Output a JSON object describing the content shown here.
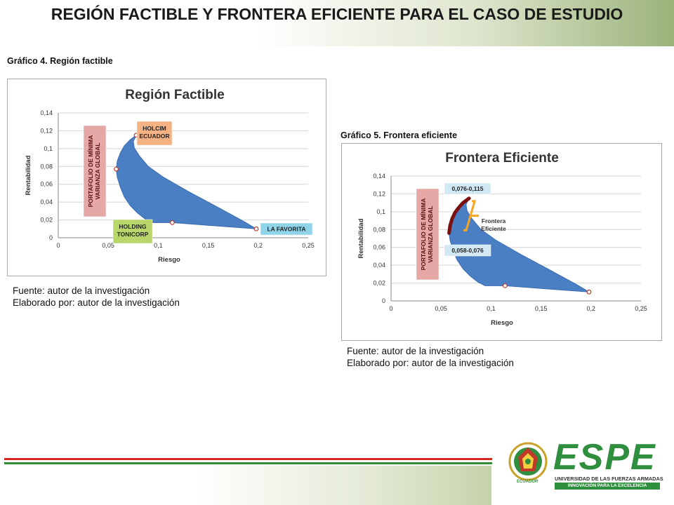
{
  "slide": {
    "title": "REGIÓN FACTIBLE Y FRONTERA EFICIENTE PARA EL CASO DE ESTUDIO",
    "caption_left": "Gráfico 4. Región factible",
    "caption_right": "Gráfico 5. Frontera eficiente",
    "source_left": "Fuente: autor de la investigación",
    "made_left": "Elaborado por: autor de la investigación",
    "source_right": "Fuente: autor de la investigación",
    "made_right": "Elaborado por: autor de la investigación",
    "colors": {
      "title_bar_end": "#9bb37a",
      "region_fill": "#4a7fc3",
      "frontier": "#7a1010",
      "bracket": "#f5a623",
      "line_red": "#d42a1e",
      "line_green": "#2f8a3a"
    }
  },
  "logo": {
    "name": "ESPE",
    "subtitle": "UNIVERSIDAD DE LAS FUERZAS ARMADAS",
    "tagline": "INNOVACIÓN PARA LA EXCELENCIA",
    "seal_text": "ECUADOR",
    "colors": {
      "green": "#2f8f3e",
      "gold": "#c9a227",
      "red": "#c0392b"
    }
  },
  "chart_data": [
    {
      "type": "area",
      "title": "Región Factible",
      "xlabel": "Riesgo",
      "ylabel": "Rentabilidad",
      "xlim": [
        0,
        0.25
      ],
      "ylim": [
        0,
        0.14
      ],
      "x_ticks": [
        "0",
        "0,05",
        "0,1",
        "0,15",
        "0,2",
        "0,25"
      ],
      "y_ticks": [
        "0",
        "0,02",
        "0,04",
        "0,06",
        "0,08",
        "0,1",
        "0,12",
        "0,14"
      ],
      "grid": true,
      "region": [
        [
          0.078,
          0.115
        ],
        [
          0.072,
          0.11
        ],
        [
          0.066,
          0.103
        ],
        [
          0.062,
          0.095
        ],
        [
          0.059,
          0.086
        ],
        [
          0.058,
          0.077
        ],
        [
          0.059,
          0.068
        ],
        [
          0.062,
          0.057
        ],
        [
          0.066,
          0.046
        ],
        [
          0.072,
          0.036
        ],
        [
          0.079,
          0.028
        ],
        [
          0.087,
          0.021
        ],
        [
          0.094,
          0.017
        ],
        [
          0.106,
          0.017
        ],
        [
          0.114,
          0.017
        ],
        [
          0.15,
          0.014
        ],
        [
          0.198,
          0.01
        ],
        [
          0.186,
          0.018
        ],
        [
          0.16,
          0.034
        ],
        [
          0.13,
          0.052
        ],
        [
          0.105,
          0.068
        ],
        [
          0.09,
          0.08
        ],
        [
          0.081,
          0.092
        ],
        [
          0.076,
          0.101
        ],
        [
          0.075,
          0.108
        ],
        [
          0.078,
          0.115
        ]
      ],
      "points": [
        {
          "x": 0.078,
          "y": 0.115
        },
        {
          "x": 0.058,
          "y": 0.077
        },
        {
          "x": 0.114,
          "y": 0.017
        },
        {
          "x": 0.198,
          "y": 0.01
        }
      ],
      "annotations": [
        {
          "text": "PORTAFOLIO DE MÍNIMA VARIANZA GLOBAL",
          "bg": "#e6a7a7",
          "vertical": true
        },
        {
          "text": "HOLCIM ECUADOR",
          "bg": "#f4b183"
        },
        {
          "text": "HOLDING TONICORP",
          "bg": "#b9d66b"
        },
        {
          "text": "LA FAVORITA",
          "bg": "#8fd4e8"
        }
      ]
    },
    {
      "type": "area",
      "title": "Frontera Eficiente",
      "xlabel": "Riesgo",
      "ylabel": "Rentabilidad",
      "xlim": [
        0,
        0.25
      ],
      "ylim": [
        0,
        0.14
      ],
      "x_ticks": [
        "0",
        "0,05",
        "0,1",
        "0,15",
        "0,2",
        "0,25"
      ],
      "y_ticks": [
        "0",
        "0,02",
        "0,04",
        "0,06",
        "0,08",
        "0,1",
        "0,12",
        "0,14"
      ],
      "grid": true,
      "region": [
        [
          0.078,
          0.115
        ],
        [
          0.072,
          0.11
        ],
        [
          0.066,
          0.103
        ],
        [
          0.062,
          0.095
        ],
        [
          0.059,
          0.086
        ],
        [
          0.058,
          0.077
        ],
        [
          0.059,
          0.068
        ],
        [
          0.062,
          0.057
        ],
        [
          0.066,
          0.046
        ],
        [
          0.072,
          0.036
        ],
        [
          0.079,
          0.028
        ],
        [
          0.087,
          0.021
        ],
        [
          0.094,
          0.017
        ],
        [
          0.106,
          0.017
        ],
        [
          0.114,
          0.017
        ],
        [
          0.15,
          0.014
        ],
        [
          0.198,
          0.01
        ],
        [
          0.186,
          0.018
        ],
        [
          0.16,
          0.034
        ],
        [
          0.13,
          0.052
        ],
        [
          0.105,
          0.068
        ],
        [
          0.09,
          0.08
        ],
        [
          0.081,
          0.092
        ],
        [
          0.076,
          0.101
        ],
        [
          0.075,
          0.108
        ],
        [
          0.078,
          0.115
        ]
      ],
      "frontier": [
        [
          0.058,
          0.076
        ],
        [
          0.059,
          0.084
        ],
        [
          0.061,
          0.092
        ],
        [
          0.064,
          0.099
        ],
        [
          0.068,
          0.105
        ],
        [
          0.072,
          0.11
        ],
        [
          0.078,
          0.115
        ]
      ],
      "points": [
        {
          "x": 0.114,
          "y": 0.017
        },
        {
          "x": 0.198,
          "y": 0.01
        }
      ],
      "annotations": [
        {
          "text": "PORTAFOLIO DE MÍNIMA VARIANZA GLOBAL",
          "bg": "#e6a7a7",
          "vertical": true
        },
        {
          "text": "0,076-0,115",
          "bg": "#d2e9f3"
        },
        {
          "text": "0,058-0,076",
          "bg": "#d2e9f3"
        },
        {
          "text": "Frontera Eficiente",
          "bg": "none"
        }
      ]
    }
  ]
}
